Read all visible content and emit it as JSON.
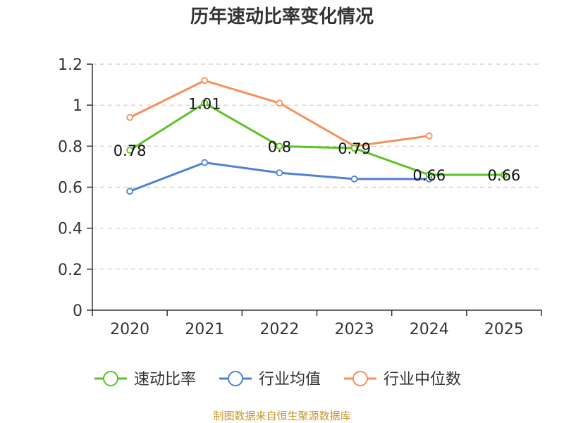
{
  "chart_data": {
    "type": "line",
    "title": "历年速动比率变化情况",
    "categories": [
      "2020",
      "2021",
      "2022",
      "2023",
      "2024",
      "2025"
    ],
    "ylim": [
      0,
      1.2
    ],
    "yticks": [
      "0",
      "0.2",
      "0.4",
      "0.6",
      "0.8",
      "1",
      "1.2"
    ],
    "grid": true,
    "legend_position": "bottom",
    "series": [
      {
        "name": "速动比率",
        "color": "#5bc323",
        "values": [
          0.78,
          1.01,
          0.8,
          0.79,
          0.66,
          0.66
        ],
        "labels": [
          "0.78",
          "1.01",
          "0.8",
          "0.79",
          "0.66",
          "0.66"
        ]
      },
      {
        "name": "行业均值",
        "color": "#4f81d9",
        "values": [
          0.58,
          0.72,
          0.67,
          0.64,
          0.64,
          null
        ]
      },
      {
        "name": "行业中位数",
        "color": "#f6905a",
        "values": [
          0.94,
          1.12,
          1.01,
          0.8,
          0.85,
          null
        ]
      }
    ]
  },
  "source": "制图数据来自恒生聚源数据库"
}
